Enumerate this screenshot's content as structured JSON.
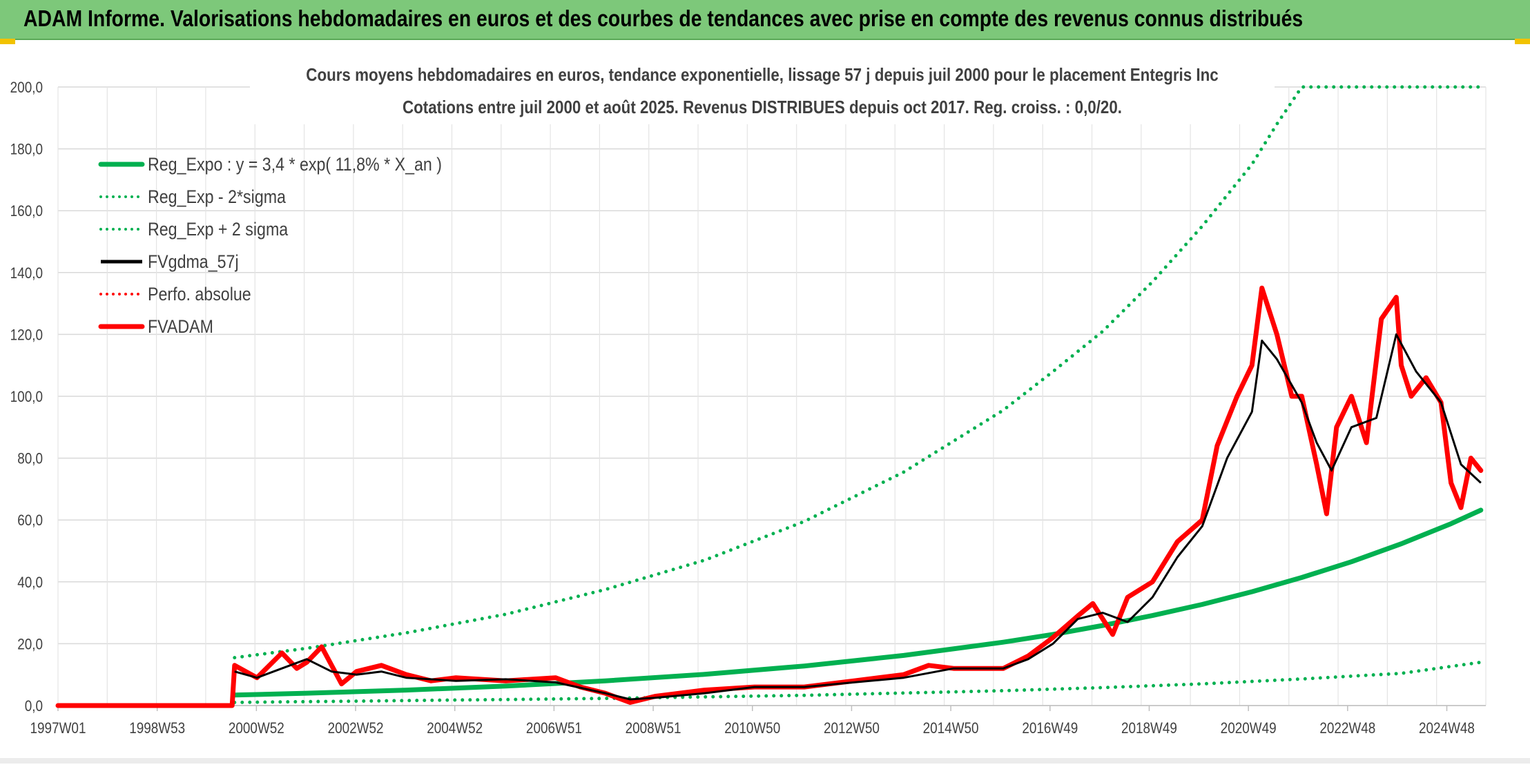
{
  "banner": {
    "title": "ADAM Informe. Valorisations hebdomadaires en euros et des courbes de tendances avec prise en compte des revenus connus distribués"
  },
  "chart_data": {
    "type": "line",
    "title": "Cours moyens hebdomadaires en euros, tendance exponentielle, lissage 57 j depuis juil 2000 pour le placement Entegris Inc",
    "subtitle": "Cotations entre juil 2000 et août 2025. Revenus DISTRIBUES depuis oct 2017. Reg. croiss. : 0,0/20.",
    "xlabel": "",
    "ylabel": "",
    "x_ticks": [
      "1997W01",
      "1998W53",
      "2000W52",
      "2002W52",
      "2004W52",
      "2006W51",
      "2008W51",
      "2010W50",
      "2012W50",
      "2014W50",
      "2016W49",
      "2018W49",
      "2020W49",
      "2022W48",
      "2024W48"
    ],
    "xlim": [
      1997.0,
      2025.7
    ],
    "ylim": [
      0,
      200
    ],
    "y_ticks": [
      "0,0",
      "20,0",
      "40,0",
      "60,0",
      "80,0",
      "100,0",
      "120,0",
      "140,0",
      "160,0",
      "180,0",
      "200,0"
    ],
    "grid": true,
    "legend_position": "top-left",
    "series": [
      {
        "name": "Reg_Expo : y = 3,4 * exp( 11,8% *  X_an )",
        "color": "#00b050",
        "style": "solid-thick",
        "x": [
          2000.55,
          2002,
          2004,
          2006,
          2008,
          2010,
          2012,
          2014,
          2016,
          2017,
          2018,
          2019,
          2020,
          2021,
          2022,
          2023,
          2024,
          2025,
          2025.6
        ],
        "y": [
          3.4,
          4.0,
          5.0,
          6.3,
          8.0,
          10.1,
          12.8,
          16.2,
          20.5,
          23.0,
          25.9,
          29.1,
          32.7,
          36.8,
          41.4,
          46.5,
          52.3,
          58.8,
          63.2
        ]
      },
      {
        "name": "Reg_Exp - 2*sigma",
        "color": "#00b050",
        "style": "dotted",
        "x": [
          2000.55,
          2004,
          2008,
          2012,
          2016,
          2018,
          2020,
          2022,
          2024,
          2025.6
        ],
        "y": [
          1.0,
          1.6,
          2.3,
          3.3,
          4.8,
          5.8,
          7.0,
          8.6,
          10.4,
          14.0
        ]
      },
      {
        "name": "Reg_Exp + 2 sigma",
        "color": "#00b050",
        "style": "dotted",
        "x": [
          2000.55,
          2002,
          2004,
          2006,
          2008,
          2010,
          2012,
          2014,
          2016,
          2017,
          2018,
          2019,
          2020,
          2021,
          2021.5,
          2022,
          2024,
          2025.6
        ],
        "y": [
          15.5,
          18.5,
          23.5,
          29.5,
          37.5,
          47.0,
          59.5,
          75.5,
          95.5,
          108.0,
          121.0,
          137.0,
          155.0,
          175.0,
          188.0,
          200.0,
          200.0,
          200.0
        ]
      },
      {
        "name": "FVgdma_57j",
        "color": "#000000",
        "style": "solid",
        "x": [
          2000.55,
          2001,
          2001.5,
          2002,
          2002.5,
          2003,
          2003.5,
          2004,
          2005,
          2006,
          2007,
          2008,
          2008.5,
          2009,
          2010,
          2011,
          2012,
          2013,
          2014,
          2015,
          2016,
          2016.5,
          2017,
          2017.5,
          2018,
          2018.5,
          2019,
          2019.5,
          2020,
          2020.5,
          2021,
          2021.2,
          2021.5,
          2022,
          2022.3,
          2022.6,
          2023,
          2023.5,
          2023.9,
          2024.3,
          2024.8,
          2025.2,
          2025.6
        ],
        "y": [
          11,
          9,
          12,
          15,
          11,
          10,
          11,
          9,
          8,
          8.5,
          7.5,
          4,
          2,
          2.5,
          4,
          6,
          6,
          7.5,
          9,
          12,
          12,
          15,
          20,
          28,
          30,
          27,
          35,
          48,
          58,
          80,
          95,
          118,
          112,
          98,
          85,
          76,
          90,
          93,
          120,
          108,
          98,
          78,
          72
        ]
      },
      {
        "name": "Perfo. absolue",
        "color": "#ff0000",
        "style": "dotted",
        "x": [
          1997.0,
          2000.5
        ],
        "y": [
          0,
          0
        ]
      },
      {
        "name": "FVADAM",
        "color": "#ff0000",
        "style": "solid-thick",
        "x": [
          1997.0,
          2000.5,
          2000.55,
          2001,
          2001.5,
          2001.8,
          2002,
          2002.3,
          2002.7,
          2003,
          2003.5,
          2004,
          2004.5,
          2005,
          2006,
          2007,
          2007.5,
          2008,
          2008.5,
          2009,
          2009.5,
          2010,
          2011,
          2012,
          2013,
          2014,
          2014.5,
          2015,
          2016,
          2016.5,
          2017,
          2017.5,
          2017.8,
          2018.2,
          2018.5,
          2019,
          2019.5,
          2020,
          2020.3,
          2020.7,
          2021.0,
          2021.2,
          2021.5,
          2021.8,
          2022,
          2022.3,
          2022.5,
          2022.7,
          2023.0,
          2023.3,
          2023.6,
          2023.9,
          2024.0,
          2024.2,
          2024.5,
          2024.8,
          2025.0,
          2025.2,
          2025.4,
          2025.6
        ],
        "y": [
          0,
          0,
          13,
          9,
          17,
          12,
          14,
          19,
          7,
          11,
          13,
          10,
          8,
          9,
          8,
          9,
          6,
          4,
          1,
          3,
          4,
          5,
          6,
          6,
          8,
          10,
          13,
          12,
          12,
          16,
          22,
          29,
          33,
          23,
          35,
          40,
          53,
          60,
          84,
          100,
          110,
          135,
          120,
          100,
          100,
          78,
          62,
          90,
          100,
          85,
          125,
          132,
          110,
          100,
          106,
          98,
          72,
          64,
          80,
          76
        ]
      }
    ]
  }
}
